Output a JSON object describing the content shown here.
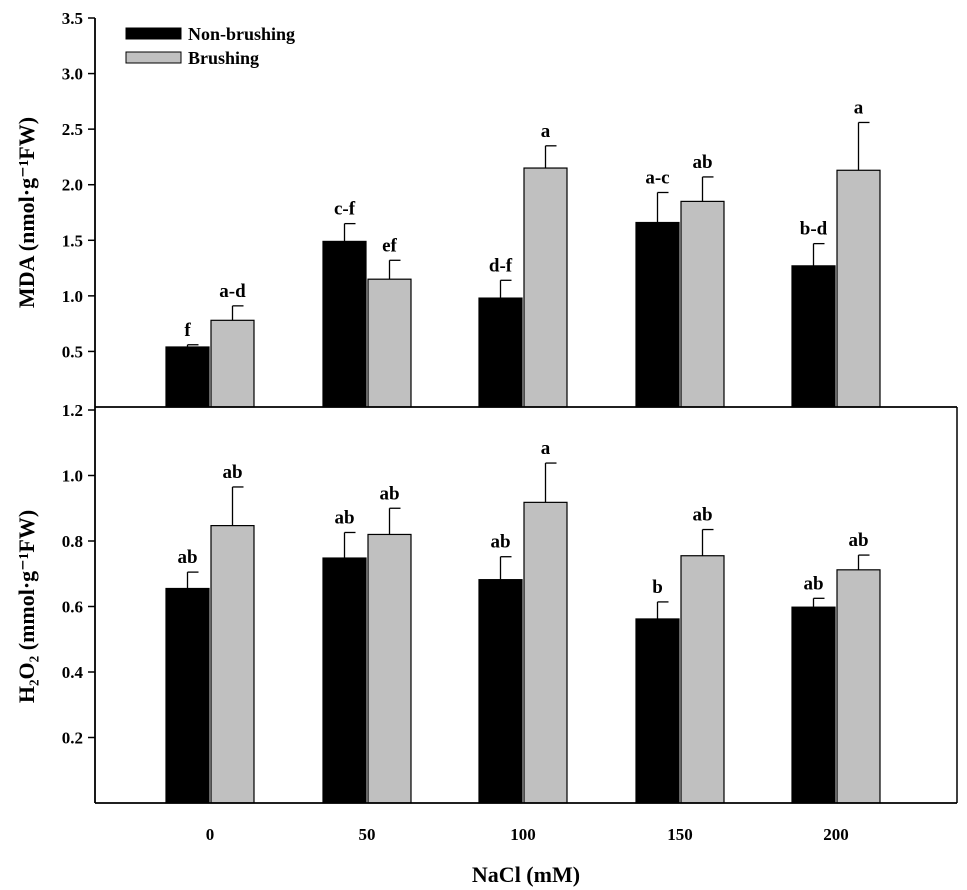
{
  "chart_data": [
    {
      "type": "bar",
      "categories": [
        "0",
        "50",
        "100",
        "150",
        "200"
      ],
      "ylabel": "MDA (nmol·g⁻¹FW)",
      "xlabel": "",
      "ylim": [
        0,
        3.5
      ],
      "yticks": [
        "0.5",
        "1.0",
        "1.5",
        "2.0",
        "2.5",
        "3.0",
        "3.5"
      ],
      "legend": "top-left",
      "series": [
        {
          "name": "Non-brushing",
          "color": "#000000",
          "values": [
            0.54,
            1.49,
            0.98,
            1.66,
            1.27
          ],
          "errors": [
            0.02,
            0.16,
            0.16,
            0.27,
            0.2
          ],
          "labels": [
            "f",
            "c-f",
            "d-f",
            "a-c",
            "b-d"
          ]
        },
        {
          "name": "Brushing",
          "color": "#c0c0c0",
          "values": [
            0.78,
            1.15,
            2.15,
            1.85,
            2.13
          ],
          "errors": [
            0.13,
            0.17,
            0.2,
            0.22,
            0.43
          ],
          "labels": [
            "a-d",
            "ef",
            "a",
            "ab",
            "a"
          ]
        }
      ]
    },
    {
      "type": "bar",
      "categories": [
        "0",
        "50",
        "100",
        "150",
        "200"
      ],
      "ylabel": "H₂O₂ (mmol·g⁻¹FW)",
      "xlabel": "NaCl (mM)",
      "ylim": [
        0,
        1.2
      ],
      "yticks": [
        "0.2",
        "0.4",
        "0.6",
        "0.8",
        "1.0",
        "1.2"
      ],
      "series": [
        {
          "name": "Non-brushing",
          "color": "#000000",
          "values": [
            0.655,
            0.748,
            0.682,
            0.562,
            0.598
          ],
          "errors": [
            0.05,
            0.078,
            0.07,
            0.052,
            0.027
          ],
          "labels": [
            "ab",
            "ab",
            "ab",
            "b",
            "ab"
          ]
        },
        {
          "name": "Brushing",
          "color": "#c0c0c0",
          "values": [
            0.847,
            0.82,
            0.918,
            0.755,
            0.712
          ],
          "errors": [
            0.118,
            0.08,
            0.12,
            0.08,
            0.045
          ],
          "labels": [
            "ab",
            "ab",
            "a",
            "ab",
            "ab"
          ]
        }
      ]
    }
  ]
}
